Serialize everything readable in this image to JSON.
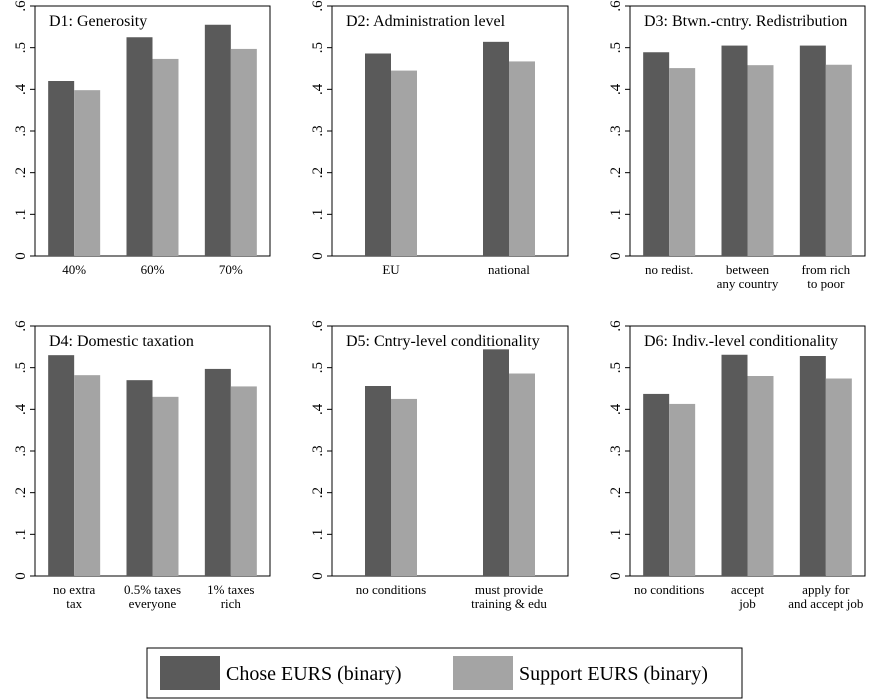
{
  "colors": {
    "series1": "#5a5a5a",
    "series2": "#a4a4a4",
    "axis": "#000000",
    "background": "#ffffff"
  },
  "legend": {
    "items": [
      {
        "label": "Chose EURS (binary)"
      },
      {
        "label": "Support EURS (binary)"
      }
    ],
    "placement": "bottom"
  },
  "chart_data": [
    {
      "type": "bar",
      "title": "D1: Generosity",
      "categories": [
        [
          "40%"
        ],
        [
          "60%"
        ],
        [
          "70%"
        ]
      ],
      "ylim": [
        0,
        0.6
      ],
      "yticks": [
        0,
        0.1,
        0.2,
        0.3,
        0.4,
        0.5,
        0.6
      ],
      "ytick_labels": [
        "0",
        ".1",
        ".2",
        ".3",
        ".4",
        ".5",
        ".6"
      ],
      "series": [
        {
          "name": "Chose EURS (binary)",
          "values": [
            0.42,
            0.525,
            0.555
          ]
        },
        {
          "name": "Support EURS (binary)",
          "values": [
            0.398,
            0.473,
            0.497
          ]
        }
      ]
    },
    {
      "type": "bar",
      "title": "D2: Administration level",
      "categories": [
        [
          "EU"
        ],
        [
          "national"
        ]
      ],
      "ylim": [
        0,
        0.6
      ],
      "yticks": [
        0,
        0.1,
        0.2,
        0.3,
        0.4,
        0.5,
        0.6
      ],
      "ytick_labels": [
        "0",
        ".1",
        ".2",
        ".3",
        ".4",
        ".5",
        ".6"
      ],
      "series": [
        {
          "name": "Chose EURS (binary)",
          "values": [
            0.486,
            0.514
          ]
        },
        {
          "name": "Support EURS (binary)",
          "values": [
            0.445,
            0.467
          ]
        }
      ]
    },
    {
      "type": "bar",
      "title": "D3: Btwn.-cntry. Redistribution",
      "categories": [
        [
          "no redist."
        ],
        [
          "between",
          "any country"
        ],
        [
          "from rich",
          "to poor"
        ]
      ],
      "ylim": [
        0,
        0.6
      ],
      "yticks": [
        0,
        0.1,
        0.2,
        0.3,
        0.4,
        0.5,
        0.6
      ],
      "ytick_labels": [
        "0",
        ".1",
        ".2",
        ".3",
        ".4",
        ".5",
        ".6"
      ],
      "series": [
        {
          "name": "Chose EURS (binary)",
          "values": [
            0.489,
            0.505,
            0.505
          ]
        },
        {
          "name": "Support EURS (binary)",
          "values": [
            0.451,
            0.458,
            0.459
          ]
        }
      ]
    },
    {
      "type": "bar",
      "title": "D4: Domestic taxation",
      "categories": [
        [
          "no extra",
          "tax"
        ],
        [
          "0.5% taxes",
          "everyone"
        ],
        [
          "1% taxes",
          "rich"
        ]
      ],
      "ylim": [
        0,
        0.6
      ],
      "yticks": [
        0,
        0.1,
        0.2,
        0.3,
        0.4,
        0.5,
        0.6
      ],
      "ytick_labels": [
        "0",
        ".1",
        ".2",
        ".3",
        ".4",
        ".5",
        ".6"
      ],
      "series": [
        {
          "name": "Chose EURS (binary)",
          "values": [
            0.53,
            0.47,
            0.497
          ]
        },
        {
          "name": "Support EURS (binary)",
          "values": [
            0.482,
            0.43,
            0.455
          ]
        }
      ]
    },
    {
      "type": "bar",
      "title": "D5: Cntry-level conditionality",
      "categories": [
        [
          "no conditions"
        ],
        [
          "must provide",
          "training & edu"
        ]
      ],
      "ylim": [
        0,
        0.6
      ],
      "yticks": [
        0,
        0.1,
        0.2,
        0.3,
        0.4,
        0.5,
        0.6
      ],
      "ytick_labels": [
        "0",
        ".1",
        ".2",
        ".3",
        ".4",
        ".5",
        ".6"
      ],
      "series": [
        {
          "name": "Chose EURS (binary)",
          "values": [
            0.456,
            0.544
          ]
        },
        {
          "name": "Support EURS (binary)",
          "values": [
            0.425,
            0.486
          ]
        }
      ]
    },
    {
      "type": "bar",
      "title": "D6: Indiv.-level conditionality",
      "categories": [
        [
          "no conditions"
        ],
        [
          "accept",
          "job"
        ],
        [
          "apply for",
          "and accept job"
        ]
      ],
      "ylim": [
        0,
        0.6
      ],
      "yticks": [
        0,
        0.1,
        0.2,
        0.3,
        0.4,
        0.5,
        0.6
      ],
      "ytick_labels": [
        "0",
        ".1",
        ".2",
        ".3",
        ".4",
        ".5",
        ".6"
      ],
      "series": [
        {
          "name": "Chose EURS (binary)",
          "values": [
            0.437,
            0.531,
            0.528
          ]
        },
        {
          "name": "Support EURS (binary)",
          "values": [
            0.413,
            0.48,
            0.474
          ]
        }
      ]
    }
  ]
}
